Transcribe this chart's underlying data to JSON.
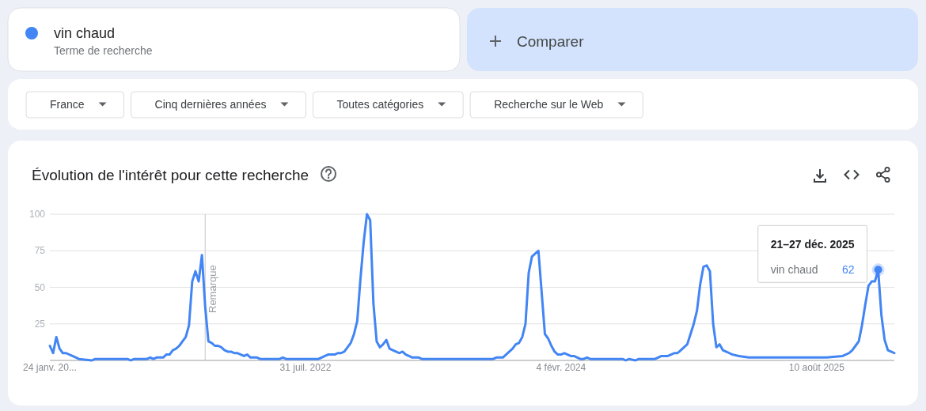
{
  "chart_data": {
    "type": "line",
    "title": "Évolution de l'intérêt pour cette recherche",
    "x": [
      "2021-01-24",
      "2021-01-31",
      "2021-02-07",
      "2021-02-14",
      "2021-02-21",
      "2021-02-28",
      "2021-03-14",
      "2021-03-28",
      "2021-04-25",
      "2021-05-02",
      "2021-07-11",
      "2021-07-18",
      "2021-07-25",
      "2021-08-22",
      "2021-08-29",
      "2021-09-05",
      "2021-09-12",
      "2021-09-26",
      "2021-10-03",
      "2021-10-10",
      "2021-10-17",
      "2021-10-24",
      "2021-10-31",
      "2021-11-07",
      "2021-11-14",
      "2021-11-21",
      "2021-11-28",
      "2021-12-05",
      "2021-12-12",
      "2021-12-19",
      "2021-12-26",
      "2022-01-02",
      "2022-01-09",
      "2022-01-16",
      "2022-01-23",
      "2022-01-30",
      "2022-02-06",
      "2022-02-13",
      "2022-02-20",
      "2022-02-27",
      "2022-03-06",
      "2022-03-13",
      "2022-03-20",
      "2022-03-27",
      "2022-04-03",
      "2022-04-17",
      "2022-04-24",
      "2022-06-05",
      "2022-06-12",
      "2022-06-19",
      "2022-08-28",
      "2022-09-04",
      "2022-09-11",
      "2022-09-18",
      "2022-10-02",
      "2022-10-09",
      "2022-10-16",
      "2022-10-23",
      "2022-10-30",
      "2022-11-06",
      "2022-11-13",
      "2022-11-20",
      "2022-11-27",
      "2022-12-04",
      "2022-12-11",
      "2022-12-18",
      "2022-12-25",
      "2023-01-01",
      "2023-01-08",
      "2023-01-15",
      "2023-01-22",
      "2023-01-29",
      "2023-02-05",
      "2023-02-12",
      "2023-02-19",
      "2023-02-26",
      "2023-03-05",
      "2023-03-12",
      "2023-03-19",
      "2023-04-02",
      "2023-04-09",
      "2023-08-20",
      "2023-09-10",
      "2023-09-17",
      "2023-10-01",
      "2023-10-08",
      "2023-10-15",
      "2023-10-22",
      "2023-10-29",
      "2023-11-05",
      "2023-11-12",
      "2023-11-19",
      "2023-11-26",
      "2023-12-03",
      "2023-12-10",
      "2023-12-17",
      "2023-12-31",
      "2024-01-07",
      "2024-01-14",
      "2024-01-21",
      "2024-01-28",
      "2024-02-04",
      "2024-02-11",
      "2024-02-18",
      "2024-02-25",
      "2024-03-03",
      "2024-03-10",
      "2024-03-17",
      "2024-03-24",
      "2024-03-31",
      "2024-04-07",
      "2024-06-16",
      "2024-06-23",
      "2024-06-30",
      "2024-07-14",
      "2024-07-21",
      "2024-08-25",
      "2024-09-01",
      "2024-09-08",
      "2024-09-22",
      "2024-09-29",
      "2024-10-06",
      "2024-10-13",
      "2024-10-20",
      "2024-10-27",
      "2024-11-03",
      "2024-11-10",
      "2024-11-17",
      "2024-11-24",
      "2024-12-01",
      "2024-12-08",
      "2024-12-15",
      "2024-12-22",
      "2024-12-29",
      "2025-01-05",
      "2025-01-12",
      "2025-01-19",
      "2025-01-26",
      "2025-02-02",
      "2025-02-09",
      "2025-02-23",
      "2025-03-16",
      "2025-08-31",
      "2025-10-05",
      "2025-10-19",
      "2025-10-26",
      "2025-11-02",
      "2025-11-09",
      "2025-11-16",
      "2025-11-23",
      "2025-11-30",
      "2025-12-07",
      "2025-12-14",
      "2025-12-21",
      "2025-12-28",
      "2026-01-04",
      "2026-01-11",
      "2026-01-18",
      "2026-01-25"
    ],
    "series": [
      {
        "name": "vin chaud",
        "color": "#4285f4",
        "values": [
          10,
          5,
          16,
          8,
          5,
          5,
          3,
          1,
          0,
          1,
          1,
          0,
          1,
          1,
          2,
          1,
          2,
          2,
          4,
          4,
          7,
          8,
          10,
          13,
          16,
          24,
          54,
          61,
          54,
          72,
          37,
          13,
          12,
          10,
          10,
          9,
          7,
          6,
          6,
          5,
          5,
          4,
          3,
          4,
          2,
          2,
          1,
          1,
          2,
          1,
          1,
          2,
          3,
          4,
          4,
          5,
          5,
          6,
          9,
          12,
          18,
          27,
          56,
          81,
          100,
          96,
          39,
          13,
          9,
          11,
          14,
          8,
          7,
          6,
          5,
          6,
          4,
          3,
          2,
          2,
          1,
          1,
          1,
          2,
          2,
          4,
          6,
          8,
          11,
          12,
          16,
          25,
          60,
          71,
          73,
          75,
          18,
          15,
          10,
          6,
          4,
          4,
          5,
          4,
          3,
          3,
          2,
          1,
          1,
          2,
          1,
          1,
          0,
          1,
          0,
          1,
          1,
          2,
          3,
          3,
          4,
          5,
          5,
          7,
          9,
          11,
          18,
          25,
          34,
          52,
          64,
          65,
          61,
          25,
          9,
          11,
          7,
          6,
          5,
          4,
          3,
          2,
          2,
          3,
          5,
          7,
          10,
          13,
          24,
          38,
          51,
          54,
          54,
          62,
          31,
          14,
          7,
          6,
          5
        ],
        "value_labels": [
          null,
          null,
          null,
          null,
          null,
          null,
          null,
          null,
          null,
          null,
          null,
          null,
          null,
          null,
          null,
          null,
          null,
          null,
          null,
          null,
          null,
          null,
          null,
          null,
          null,
          null,
          null,
          null,
          null,
          null,
          null,
          null,
          null,
          null,
          null,
          null,
          null,
          null,
          null,
          null,
          null,
          null,
          null,
          null,
          null,
          null,
          null,
          null,
          null,
          null,
          null,
          null,
          null,
          null,
          null,
          null,
          null,
          null,
          null,
          null,
          null,
          null,
          null,
          null,
          null,
          null,
          null,
          null,
          null,
          null,
          null,
          null,
          null,
          null,
          null,
          null,
          null,
          null,
          null,
          null,
          null,
          null,
          null,
          null,
          null,
          null,
          null,
          null,
          null,
          null,
          null,
          null,
          null,
          null,
          null,
          null,
          null,
          null,
          null,
          null,
          null,
          null,
          null,
          null,
          null,
          null,
          null,
          null,
          null,
          null,
          null,
          null,
          null,
          null,
          null,
          null,
          null,
          null,
          null,
          null,
          null,
          null,
          null,
          null,
          null,
          null,
          null,
          null,
          null,
          null,
          null,
          null,
          null,
          null,
          null,
          null,
          null,
          null,
          null,
          null,
          null,
          null,
          null,
          null,
          null,
          null,
          null,
          null,
          null,
          null,
          null,
          null,
          null,
          "62",
          null,
          null,
          null,
          null,
          null
        ]
      }
    ],
    "xlim": [
      "2021-01-24",
      "2026-01-25"
    ],
    "ylim": [
      0,
      100
    ],
    "xticks": [
      {
        "value": "2021-01-24",
        "label": "24 janv. 20..."
      },
      {
        "value": "2022-07-31",
        "label": "31 juil. 2022"
      },
      {
        "value": "2024-02-04",
        "label": "4 févr. 2024"
      },
      {
        "value": "2025-08-10",
        "label": "10 août 2025"
      }
    ],
    "yticks": [
      25,
      50,
      75,
      100
    ],
    "grid": "y",
    "legend": "top left",
    "ref_lines": [
      {
        "axis": "x",
        "value": "2021-12-26",
        "label": "Remarque",
        "color": "#c6c6c6"
      }
    ],
    "annotations": [
      "Terme de recherche",
      "Comparer",
      "France",
      "Cinq dernières années",
      "Toutes catégories",
      "Recherche sur le Web",
      {
        "text": "21–27 déc. 2025",
        "x": "2025-12-21",
        "y": 62
      }
    ]
  }
}
